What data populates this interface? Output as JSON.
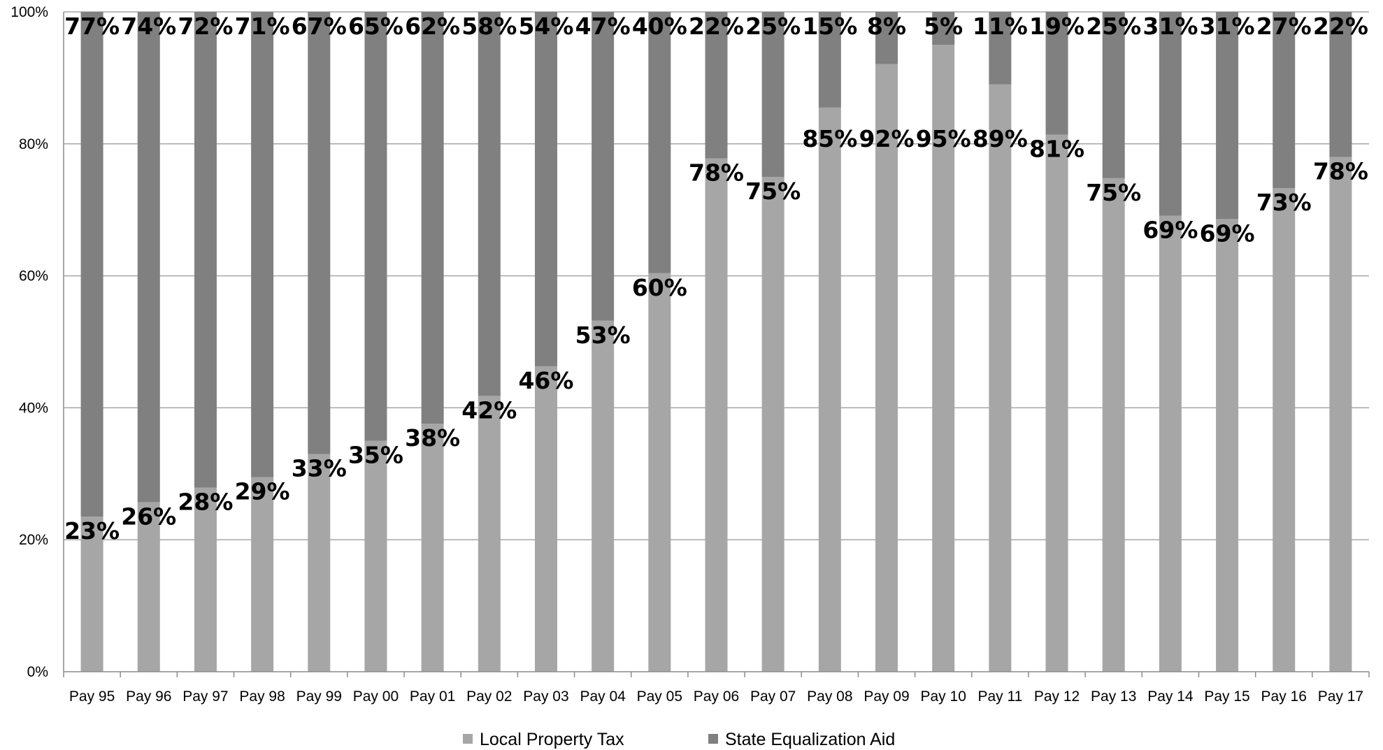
{
  "chart_data": {
    "type": "bar",
    "stacked": true,
    "percent_stacked": true,
    "categories": [
      "Pay 95",
      "Pay 96",
      "Pay 97",
      "Pay 98",
      "Pay 99",
      "Pay 00",
      "Pay 01",
      "Pay 02",
      "Pay 03",
      "Pay 04",
      "Pay 05",
      "Pay 06",
      "Pay 07",
      "Pay 08",
      "Pay 09",
      "Pay 10",
      "Pay 11",
      "Pay 12",
      "Pay 13",
      "Pay 14",
      "Pay 15",
      "Pay 16",
      "Pay 17"
    ],
    "series": [
      {
        "name": "Local Property Tax",
        "color": "#a6a6a6",
        "values": [
          23.5,
          25.7,
          27.9,
          29.5,
          33,
          35,
          37.6,
          41.8,
          46.3,
          53.2,
          60.4,
          77.8,
          75,
          85.5,
          92.1,
          95,
          89,
          81.4,
          74.8,
          69.1,
          68.6,
          73.3,
          78
        ],
        "labels": [
          "23%",
          "26%",
          "28%",
          "29%",
          "33%",
          "35%",
          "38%",
          "42%",
          "46%",
          "53%",
          "60%",
          "78%",
          "75%",
          "85%",
          "92%",
          "95%",
          "89%",
          "81%",
          "75%",
          "69%",
          "69%",
          "73%",
          "78%"
        ]
      },
      {
        "name": "State Equalization Aid",
        "color": "#808080",
        "values": [
          76.5,
          74.3,
          72.1,
          70.5,
          67,
          65,
          62.4,
          58.2,
          53.7,
          46.8,
          39.6,
          22.2,
          25,
          14.5,
          7.9,
          5,
          11,
          18.6,
          25.2,
          30.9,
          31.4,
          26.7,
          22
        ],
        "labels": [
          "77%",
          "74%",
          "72%",
          "71%",
          "67%",
          "65%",
          "62%",
          "58%",
          "54%",
          "47%",
          "40%",
          "22%",
          "25%",
          "15%",
          "8%",
          "5%",
          "11%",
          "19%",
          "25%",
          "31%",
          "31%",
          "27%",
          "22%"
        ]
      }
    ],
    "yticks": [
      "0%",
      "20%",
      "40%",
      "60%",
      "80%",
      "100%"
    ],
    "ylim": [
      0,
      100
    ],
    "grid": true,
    "legend_position": "bottom",
    "title": "",
    "xlabel": "",
    "ylabel": ""
  }
}
